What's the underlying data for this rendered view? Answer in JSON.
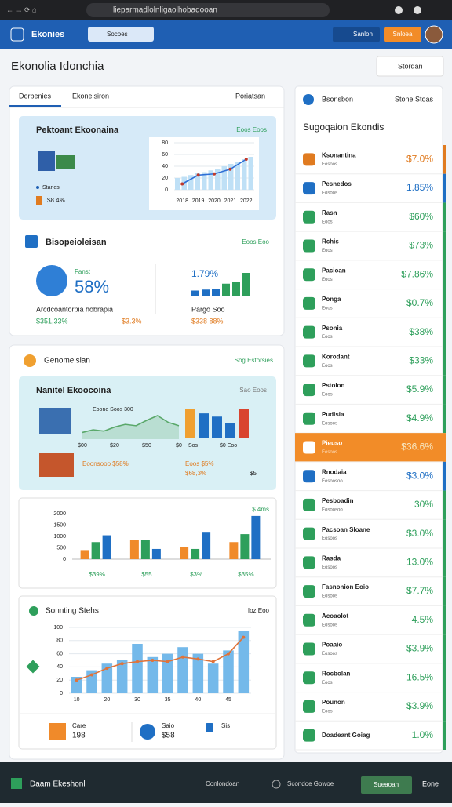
{
  "browser": {
    "url": "lieparmadlolnligaolhobadooan"
  },
  "header": {
    "brand": "Ekonies",
    "search": "Socoes",
    "button1": "Sanlon",
    "button2": "Snloea"
  },
  "page": {
    "title": "Ekonolia Idonchia",
    "select": "Stordan"
  },
  "overview": {
    "tabs": [
      "Dorbenies",
      "Ekonelsiron",
      "Poriatsan"
    ],
    "card": {
      "title": "Pektoant Ekoonaina",
      "link": "Eoos Eoos",
      "legend": "Stanes",
      "note": "$8.4%",
      "chart": {
        "ylim": [
          0,
          80
        ],
        "yticks": [
          0,
          20,
          40,
          60,
          80
        ],
        "categories": [
          "2018",
          "2019",
          "2020",
          "2021",
          "2022"
        ],
        "line": [
          10,
          25,
          27,
          35,
          52
        ],
        "line_color": "#2f6fd6",
        "bars": [
          20,
          22,
          25,
          28,
          30,
          33,
          36,
          40,
          44,
          48,
          52,
          56
        ],
        "bar_color": "#bfe0f6"
      }
    },
    "section": {
      "title": "Bisopeioleisan",
      "link": "Eoos Eoo",
      "kpi_label": "Fanst",
      "kpi": "58%",
      "caption": "Arcdcoantorpia hobrapia",
      "stat1": "$351,33%",
      "stat2": "$3.3%",
      "bars_value": "1.79%",
      "bars": [
        12,
        14,
        16,
        26,
        30,
        48
      ],
      "bar_colors": [
        "#1f6fc4",
        "#1f6fc4",
        "#1f6fc4",
        "#2e9f5b",
        "#2e9f5b",
        "#2e9f5b"
      ],
      "foot_label": "Pargo Soo",
      "foot_value": "$338 88%"
    }
  },
  "analysis": {
    "title": "Genomelsian",
    "link": "Sog Estorsies",
    "card": {
      "title": "Nanitel Ekoocoina",
      "chart_label": "Eoone Soos 300",
      "link": "Sao Eoos",
      "line": [
        10,
        14,
        12,
        18,
        22,
        20,
        28,
        35,
        25,
        20
      ],
      "line_color": "#5aa86a",
      "xlabels": [
        "$00",
        "$20",
        "$50",
        "$0"
      ],
      "bars": [
        35,
        30,
        26,
        18,
        35
      ],
      "bar_colors": [
        "#f0a030",
        "#1f6fc4",
        "#1f6fc4",
        "#1f6fc4",
        "#d9442f"
      ],
      "bar_labels": [
        "Sos",
        "$0 Eoo"
      ],
      "notes": [
        "Eoonsooo $58%",
        "Eoos $5%",
        "$68,3%",
        "$5"
      ]
    },
    "bar_chart": {
      "ylim": [
        0,
        2000
      ],
      "yticks": [
        0,
        500,
        1000,
        1500,
        2000
      ],
      "label": "$ 4ms",
      "categories": [
        "$39%",
        "$55",
        "$3%",
        "$35%"
      ],
      "series": [
        {
          "color": "#f08a2a",
          "values": [
            400,
            850,
            550,
            750
          ]
        },
        {
          "color": "#2e9f5b",
          "values": [
            750,
            850,
            450,
            1100
          ]
        },
        {
          "color": "#1f6fc4",
          "values": [
            1050,
            450,
            1200,
            1900
          ]
        }
      ]
    },
    "combo": {
      "title": "Sonnting Stehs",
      "link": "Ioz Eoo",
      "ylim": [
        0,
        100
      ],
      "yticks": [
        0,
        20,
        40,
        60,
        80,
        100
      ],
      "categories": [
        "10",
        null,
        "20",
        null,
        "30",
        null,
        "35",
        null,
        "40",
        null,
        "45",
        null
      ],
      "bars": [
        25,
        35,
        45,
        50,
        75,
        55,
        60,
        70,
        60,
        45,
        65,
        95
      ],
      "bar_color": "#74b9ea",
      "line": [
        20,
        28,
        38,
        45,
        48,
        50,
        48,
        55,
        52,
        48,
        60,
        85
      ],
      "line_color": "#e0733a"
    },
    "footer": {
      "item1": "Care",
      "item1_sub": "198",
      "item2": "Saio",
      "item2_sub": "$58",
      "item3": "Sis"
    }
  },
  "sidebar": {
    "title": "Bsonsbon",
    "link": "Stone Stoas",
    "heading": "Sugoqaion Ekondis",
    "rows": [
      {
        "name": "Ksonantina",
        "sub": "Eosoos",
        "value": "$7.0%",
        "color": "#e07b20"
      },
      {
        "name": "Pesnedos",
        "sub": "Eosoos",
        "value": "1.85%",
        "color": "#1f6fc4"
      },
      {
        "name": "Rasn",
        "sub": "Eoos",
        "value": "$60%",
        "color": "#2e9f5b"
      },
      {
        "name": "Rchis",
        "sub": "Eoos",
        "value": "$73%",
        "color": "#2e9f5b"
      },
      {
        "name": "Pacioan",
        "sub": "Eoos",
        "value": "$7.86%",
        "color": "#2e9f5b"
      },
      {
        "name": "Ponga",
        "sub": "Eoos",
        "value": "$0.7%",
        "color": "#2e9f5b"
      },
      {
        "name": "Psonia",
        "sub": "Eoos",
        "value": "$38%",
        "color": "#2e9f5b"
      },
      {
        "name": "Korodant",
        "sub": "Eoos",
        "value": "$33%",
        "color": "#2e9f5b"
      },
      {
        "name": "Pstolon",
        "sub": "Eoos",
        "value": "$5.9%",
        "color": "#2e9f5b"
      },
      {
        "name": "Pudisia",
        "sub": "Eosoos",
        "value": "$4.9%",
        "color": "#2e9f5b"
      },
      {
        "name": "Pieuso",
        "sub": "Eosoos",
        "value": "$36.6%",
        "color": "#f6e6c0",
        "fill": "#f28c28"
      },
      {
        "name": "Rnodaia",
        "sub": "Eosoosoo",
        "value": "$3.0%",
        "color": "#1f6fc4"
      },
      {
        "name": "Pesboadin",
        "sub": "Eosoosoo",
        "value": "30%",
        "color": "#2e9f5b"
      },
      {
        "name": "Pacsoan Sloane",
        "sub": "Eosoos",
        "value": "$3.0%",
        "color": "#2e9f5b"
      },
      {
        "name": "Rasda",
        "sub": "Eosoos",
        "value": "13.0%",
        "color": "#2e9f5b"
      },
      {
        "name": "Fasnonion Eoio",
        "sub": "Eosoos",
        "value": "$7.7%",
        "color": "#2e9f5b"
      },
      {
        "name": "Acoaolot",
        "sub": "Eosoos",
        "value": "4.5%",
        "color": "#2e9f5b"
      },
      {
        "name": "Poaaio",
        "sub": "Eosoos",
        "value": "$3.9%",
        "color": "#2e9f5b"
      },
      {
        "name": "Rocbolan",
        "sub": "Eoos",
        "value": "16.5%",
        "color": "#2e9f5b"
      },
      {
        "name": "Pounon",
        "sub": "Eoos",
        "value": "$3.9%",
        "color": "#2e9f5b"
      },
      {
        "name": "Doadeant Goiag",
        "value": "1.0%",
        "color": "#2e9f5b"
      }
    ]
  },
  "bottom": {
    "brand": "Daam Ekeshonl",
    "link1": "Conlondoan",
    "link2": "Scondoe Gowoe",
    "button": "Sueaoan",
    "link3": "Eone"
  }
}
